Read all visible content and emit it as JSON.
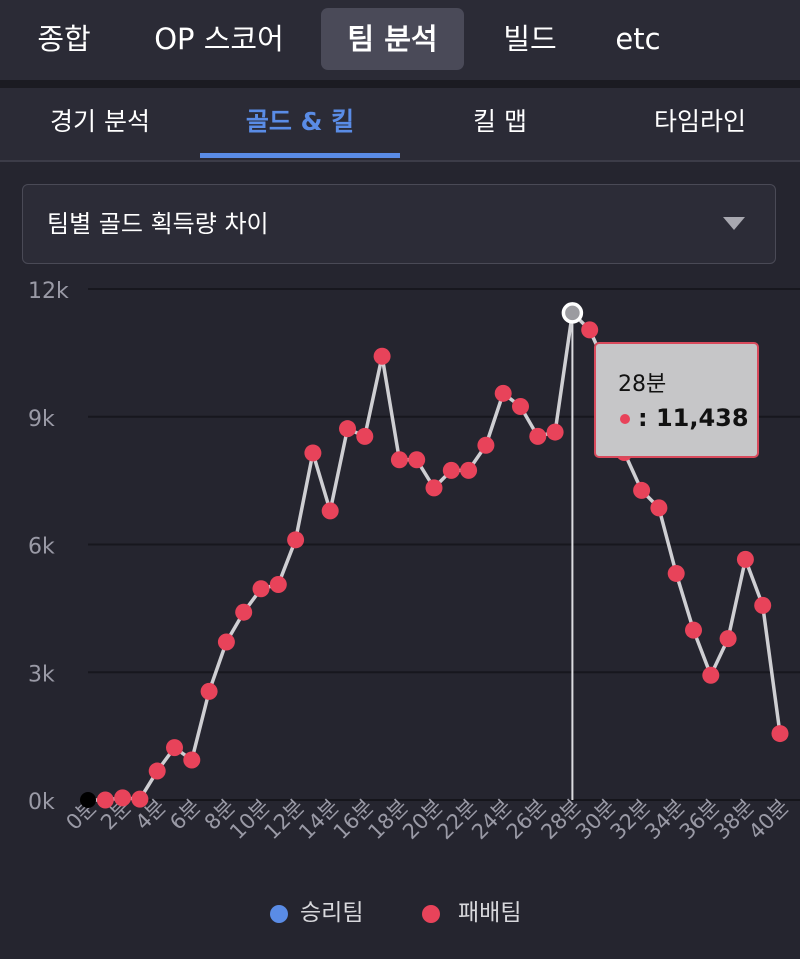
{
  "top_tabs": [
    {
      "label": "종합",
      "active": false
    },
    {
      "label": "OP 스코어",
      "active": false
    },
    {
      "label": "팀 분석",
      "active": true
    },
    {
      "label": "빌드",
      "active": false
    },
    {
      "label": "etc",
      "active": false
    }
  ],
  "sub_tabs": [
    {
      "label": "경기 분석",
      "active": false
    },
    {
      "label": "골드 & 킬",
      "active": true
    },
    {
      "label": "킬 맵",
      "active": false
    },
    {
      "label": "타임라인",
      "active": false
    }
  ],
  "dropdown": {
    "selected": "팀별 골드 획득량 차이",
    "icon": "chevron-down-icon"
  },
  "tooltip": {
    "title": "28분",
    "value": ": 11,438"
  },
  "legend": [
    {
      "label": "승리팀",
      "color": "#5a8ce6"
    },
    {
      "label": "패배팀",
      "color": "#e8435a"
    }
  ],
  "colors": {
    "accent": "#5a8ce6",
    "loss": "#e8435a",
    "line": "#cfcfd3",
    "background": "#25252f"
  },
  "chart_data": {
    "type": "line",
    "x": [
      0,
      1,
      2,
      3,
      4,
      5,
      6,
      7,
      8,
      9,
      10,
      11,
      12,
      13,
      14,
      15,
      16,
      17,
      18,
      19,
      20,
      21,
      22,
      23,
      24,
      25,
      26,
      27,
      28,
      29,
      30,
      31,
      32,
      33,
      34,
      35,
      36,
      37,
      38,
      39,
      40
    ],
    "x_tick_labels": [
      "0분",
      "2분",
      "4분",
      "6분",
      "8분",
      "10분",
      "12분",
      "14분",
      "16분",
      "18분",
      "20분",
      "22분",
      "24분",
      "26분",
      "28분",
      "30분",
      "32분",
      "34분",
      "36분",
      "38분",
      "40분"
    ],
    "y_tick_labels": [
      "0k",
      "3k",
      "6k",
      "9k",
      "12k"
    ],
    "ylim": [
      0,
      12000
    ],
    "series": [
      {
        "name": "패배팀",
        "color": "#e8435a",
        "values": [
          0,
          0,
          50,
          20,
          680,
          1230,
          940,
          2550,
          3710,
          4410,
          4960,
          5060,
          6110,
          8150,
          6790,
          8720,
          8540,
          10420,
          7990,
          7990,
          7330,
          7740,
          7740,
          8330,
          9550,
          9240,
          8540,
          8640,
          11438,
          11040,
          10140,
          8160,
          7270,
          6860,
          5320,
          3990,
          2930,
          3790,
          5650,
          4570,
          1560
        ]
      }
    ],
    "highlight_x": 28,
    "grid": true,
    "legend_position": "bottom"
  }
}
